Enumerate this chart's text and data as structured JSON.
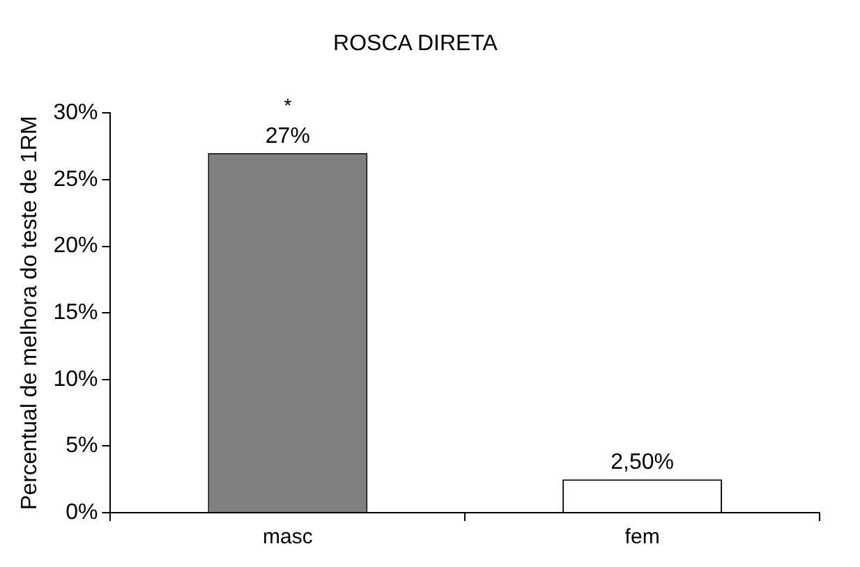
{
  "chart_data": {
    "type": "bar",
    "title": "ROSCA DIRETA",
    "ylabel": "Percentual de melhora do teste de 1RM",
    "categories": [
      "masc",
      "fem"
    ],
    "values": [
      27,
      2.5
    ],
    "colors": [
      "#808080",
      "#ffffff"
    ],
    "value_labels": [
      "27%",
      "2,50%"
    ],
    "annotations": [
      {
        "text": "*",
        "x": "masc",
        "y": 27
      }
    ],
    "ylim": [
      0,
      30
    ],
    "yticks": [
      {
        "value": 0,
        "label": "0%"
      },
      {
        "value": 5,
        "label": "5%"
      },
      {
        "value": 10,
        "label": "10%"
      },
      {
        "value": 15,
        "label": "15%"
      },
      {
        "value": 20,
        "label": "20%"
      },
      {
        "value": 25,
        "label": "25%"
      },
      {
        "value": 30,
        "label": "30%"
      }
    ],
    "grid": false,
    "legend": false
  }
}
